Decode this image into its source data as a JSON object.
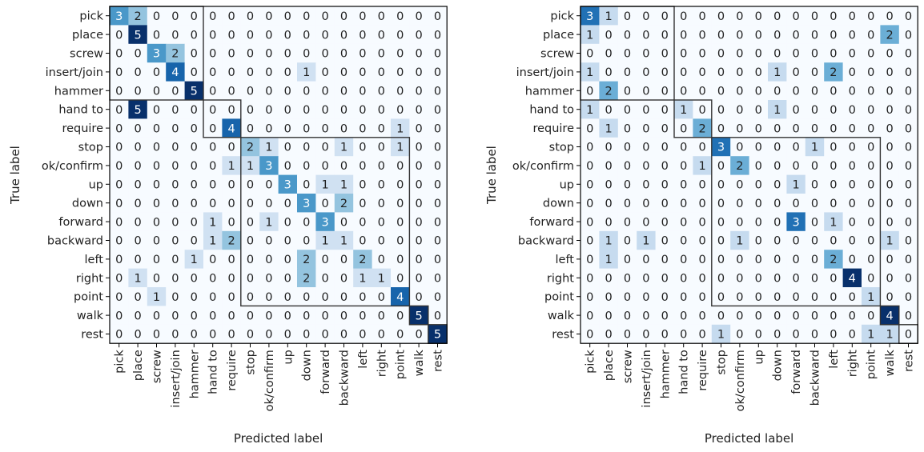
{
  "colors": {
    "low": "#f7fbff",
    "high": "#08306b",
    "text_dark": "#1f1f1f",
    "text_light": "#ffffff",
    "frame": "#000000",
    "block": "#333333"
  },
  "chart_data": [
    {
      "type": "heatmap",
      "title": "",
      "xlabel": "Predicted label",
      "ylabel": "True label",
      "x_categories": [
        "pick",
        "place",
        "screw",
        "insert/join",
        "hammer",
        "hand to",
        "require",
        "stop",
        "ok/confirm",
        "up",
        "down",
        "forward",
        "backward",
        "left",
        "right",
        "point",
        "walk",
        "rest"
      ],
      "y_categories": [
        "pick",
        "place",
        "screw",
        "insert/join",
        "hammer",
        "hand to",
        "require",
        "stop",
        "ok/confirm",
        "up",
        "down",
        "forward",
        "backward",
        "left",
        "right",
        "point",
        "walk",
        "rest"
      ],
      "vmax": 5,
      "groups": [
        [
          0,
          4
        ],
        [
          5,
          6
        ],
        [
          7,
          15
        ],
        [
          16,
          16
        ],
        [
          17,
          17
        ]
      ],
      "values": [
        [
          3,
          2,
          0,
          0,
          0,
          0,
          0,
          0,
          0,
          0,
          0,
          0,
          0,
          0,
          0,
          0,
          0,
          0
        ],
        [
          0,
          5,
          0,
          0,
          0,
          0,
          0,
          0,
          0,
          0,
          0,
          0,
          0,
          0,
          0,
          0,
          0,
          0
        ],
        [
          0,
          0,
          3,
          2,
          0,
          0,
          0,
          0,
          0,
          0,
          0,
          0,
          0,
          0,
          0,
          0,
          0,
          0
        ],
        [
          0,
          0,
          0,
          4,
          0,
          0,
          0,
          0,
          0,
          0,
          1,
          0,
          0,
          0,
          0,
          0,
          0,
          0
        ],
        [
          0,
          0,
          0,
          0,
          5,
          0,
          0,
          0,
          0,
          0,
          0,
          0,
          0,
          0,
          0,
          0,
          0,
          0
        ],
        [
          0,
          5,
          0,
          0,
          0,
          0,
          0,
          0,
          0,
          0,
          0,
          0,
          0,
          0,
          0,
          0,
          0,
          0
        ],
        [
          0,
          0,
          0,
          0,
          0,
          0,
          4,
          0,
          0,
          0,
          0,
          0,
          0,
          0,
          0,
          1,
          0,
          0
        ],
        [
          0,
          0,
          0,
          0,
          0,
          0,
          0,
          2,
          1,
          0,
          0,
          0,
          1,
          0,
          0,
          1,
          0,
          0
        ],
        [
          0,
          0,
          0,
          0,
          0,
          0,
          1,
          1,
          3,
          0,
          0,
          0,
          0,
          0,
          0,
          0,
          0,
          0
        ],
        [
          0,
          0,
          0,
          0,
          0,
          0,
          0,
          0,
          0,
          3,
          0,
          1,
          1,
          0,
          0,
          0,
          0,
          0
        ],
        [
          0,
          0,
          0,
          0,
          0,
          0,
          0,
          0,
          0,
          0,
          3,
          0,
          2,
          0,
          0,
          0,
          0,
          0
        ],
        [
          0,
          0,
          0,
          0,
          0,
          1,
          0,
          0,
          1,
          0,
          0,
          3,
          0,
          0,
          0,
          0,
          0,
          0
        ],
        [
          0,
          0,
          0,
          0,
          0,
          1,
          2,
          0,
          0,
          0,
          0,
          1,
          1,
          0,
          0,
          0,
          0,
          0
        ],
        [
          0,
          0,
          0,
          0,
          1,
          0,
          0,
          0,
          0,
          0,
          2,
          0,
          0,
          2,
          0,
          0,
          0,
          0
        ],
        [
          0,
          1,
          0,
          0,
          0,
          0,
          0,
          0,
          0,
          0,
          2,
          0,
          0,
          1,
          1,
          0,
          0,
          0
        ],
        [
          0,
          0,
          1,
          0,
          0,
          0,
          0,
          0,
          0,
          0,
          0,
          0,
          0,
          0,
          0,
          4,
          0,
          0
        ],
        [
          0,
          0,
          0,
          0,
          0,
          0,
          0,
          0,
          0,
          0,
          0,
          0,
          0,
          0,
          0,
          0,
          5,
          0
        ],
        [
          0,
          0,
          0,
          0,
          0,
          0,
          0,
          0,
          0,
          0,
          0,
          0,
          0,
          0,
          0,
          0,
          0,
          5
        ]
      ]
    },
    {
      "type": "heatmap",
      "title": "",
      "xlabel": "Predicted label",
      "ylabel": "True label",
      "x_categories": [
        "pick",
        "place",
        "screw",
        "insert/join",
        "hammer",
        "hand to",
        "require",
        "stop",
        "ok/confirm",
        "up",
        "down",
        "forward",
        "backward",
        "left",
        "right",
        "point",
        "walk",
        "rest"
      ],
      "y_categories": [
        "pick",
        "place",
        "screw",
        "insert/join",
        "hammer",
        "hand to",
        "require",
        "stop",
        "ok/confirm",
        "up",
        "down",
        "forward",
        "backward",
        "left",
        "right",
        "point",
        "walk",
        "rest"
      ],
      "vmax": 4,
      "groups": [
        [
          0,
          4
        ],
        [
          5,
          6
        ],
        [
          7,
          15
        ],
        [
          16,
          16
        ],
        [
          17,
          17
        ]
      ],
      "values": [
        [
          3,
          1,
          0,
          0,
          0,
          0,
          0,
          0,
          0,
          0,
          0,
          0,
          0,
          0,
          0,
          0,
          0,
          0
        ],
        [
          1,
          0,
          0,
          0,
          0,
          0,
          0,
          0,
          0,
          0,
          0,
          0,
          0,
          0,
          0,
          0,
          2,
          0
        ],
        [
          0,
          0,
          0,
          0,
          0,
          0,
          0,
          0,
          0,
          0,
          0,
          0,
          0,
          0,
          0,
          0,
          0,
          0
        ],
        [
          1,
          0,
          0,
          0,
          0,
          0,
          0,
          0,
          0,
          0,
          1,
          0,
          0,
          2,
          0,
          0,
          0,
          0
        ],
        [
          0,
          2,
          0,
          0,
          0,
          0,
          0,
          0,
          0,
          0,
          0,
          0,
          0,
          0,
          0,
          0,
          0,
          0
        ],
        [
          1,
          0,
          0,
          0,
          0,
          1,
          0,
          0,
          0,
          0,
          1,
          0,
          0,
          0,
          0,
          0,
          0,
          0
        ],
        [
          0,
          1,
          0,
          0,
          0,
          0,
          2,
          0,
          0,
          0,
          0,
          0,
          0,
          0,
          0,
          0,
          0,
          0
        ],
        [
          0,
          0,
          0,
          0,
          0,
          0,
          0,
          3,
          0,
          0,
          0,
          0,
          1,
          0,
          0,
          0,
          0,
          0
        ],
        [
          0,
          0,
          0,
          0,
          0,
          0,
          1,
          0,
          2,
          0,
          0,
          0,
          0,
          0,
          0,
          0,
          0,
          0
        ],
        [
          0,
          0,
          0,
          0,
          0,
          0,
          0,
          0,
          0,
          0,
          0,
          1,
          0,
          0,
          0,
          0,
          0,
          0
        ],
        [
          0,
          0,
          0,
          0,
          0,
          0,
          0,
          0,
          0,
          0,
          0,
          0,
          0,
          0,
          0,
          0,
          0,
          0
        ],
        [
          0,
          0,
          0,
          0,
          0,
          0,
          0,
          0,
          0,
          0,
          0,
          3,
          0,
          1,
          0,
          0,
          0,
          0
        ],
        [
          0,
          1,
          0,
          1,
          0,
          0,
          0,
          0,
          1,
          0,
          0,
          0,
          0,
          0,
          0,
          0,
          1,
          0
        ],
        [
          0,
          1,
          0,
          0,
          0,
          0,
          0,
          0,
          0,
          0,
          0,
          0,
          0,
          2,
          0,
          0,
          0,
          0
        ],
        [
          0,
          0,
          0,
          0,
          0,
          0,
          0,
          0,
          0,
          0,
          0,
          0,
          0,
          0,
          4,
          0,
          0,
          0
        ],
        [
          0,
          0,
          0,
          0,
          0,
          0,
          0,
          0,
          0,
          0,
          0,
          0,
          0,
          0,
          0,
          1,
          0,
          0
        ],
        [
          0,
          0,
          0,
          0,
          0,
          0,
          0,
          0,
          0,
          0,
          0,
          0,
          0,
          0,
          0,
          0,
          4,
          0
        ],
        [
          0,
          0,
          0,
          0,
          0,
          0,
          0,
          1,
          0,
          0,
          0,
          0,
          0,
          0,
          0,
          1,
          1,
          0
        ]
      ]
    }
  ]
}
